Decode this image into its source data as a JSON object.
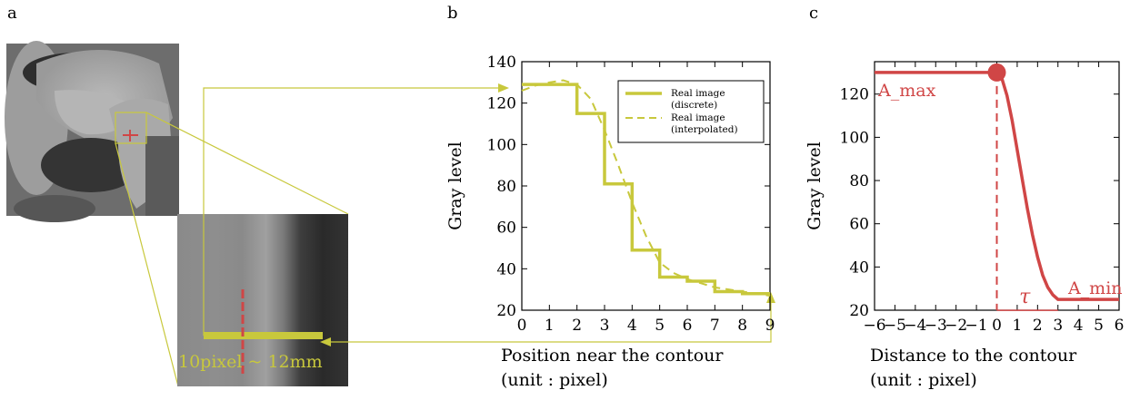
{
  "panel_labels": {
    "a": "a",
    "b": "b",
    "c": "c"
  },
  "panel_a": {
    "scale_bar_label": "10pixel ~ 12mm",
    "accent_color": "#c8c83c",
    "profile_color": "#d04646"
  },
  "chart_data": [
    {
      "type": "line",
      "panel": "b",
      "xlabel_line1": "Position near the contour",
      "xlabel_line2": "(unit : pixel)",
      "ylabel": "Gray level",
      "xlim": [
        0,
        9
      ],
      "ylim": [
        20,
        140
      ],
      "xticks": [
        0,
        1,
        2,
        3,
        4,
        5,
        6,
        7,
        8,
        9
      ],
      "yticks": [
        20,
        40,
        60,
        80,
        100,
        120,
        140
      ],
      "grid": false,
      "legend_position": "top-right",
      "series": [
        {
          "name": "Real image (discrete)",
          "legend_lines": [
            "Real image",
            "(discrete)"
          ],
          "style": "step",
          "color": "#c8c83c",
          "x": [
            0,
            1,
            2,
            3,
            4,
            5,
            6,
            7,
            8,
            9
          ],
          "y": [
            129,
            129,
            115,
            81,
            49,
            36,
            34,
            29,
            28,
            28
          ]
        },
        {
          "name": "Real image (interpolated)",
          "legend_lines": [
            "Real image",
            "(interpolated)"
          ],
          "style": "dashed",
          "color": "#c8c83c",
          "x": [
            0,
            0.5,
            1,
            1.5,
            2,
            2.5,
            3,
            3.5,
            4,
            4.5,
            5,
            5.5,
            6,
            6.5,
            7,
            7.5,
            8,
            8.5,
            9
          ],
          "y": [
            126,
            128.5,
            130,
            131,
            129,
            122,
            107,
            90,
            72,
            56,
            43,
            38,
            35,
            33,
            31,
            30,
            29,
            28,
            27
          ]
        }
      ]
    },
    {
      "type": "line",
      "panel": "c",
      "xlabel_line1": "Distance to the contour",
      "xlabel_line2": "(unit : pixel)",
      "ylabel": "Gray level",
      "xlim": [
        -6,
        6
      ],
      "ylim": [
        20,
        135
      ],
      "xticks": [
        -6,
        -5,
        -4,
        -3,
        -2,
        -1,
        0,
        1,
        2,
        3,
        4,
        5,
        6
      ],
      "xtick_labels": [
        "−6",
        "−5",
        "−4",
        "−3",
        "−2",
        "−1",
        "0",
        "1",
        "2",
        "3",
        "4",
        "5",
        "6"
      ],
      "yticks": [
        20,
        40,
        60,
        80,
        100,
        120
      ],
      "grid": false,
      "color": "#d04646",
      "series": [
        {
          "style": "solid",
          "x": [
            -6,
            0,
            0.25,
            0.5,
            0.75,
            1,
            1.25,
            1.5,
            1.75,
            2,
            2.25,
            2.5,
            2.75,
            3,
            6
          ],
          "y": [
            130,
            130,
            127.2,
            119.3,
            107.9,
            94.2,
            80.5,
            67.0,
            54.9,
            44.6,
            36.2,
            30.6,
            27.1,
            25,
            25
          ]
        }
      ],
      "annotations": {
        "a_max": "A_max",
        "a_min": "A_min",
        "tau": "τ",
        "a_max_value": 130,
        "a_min_value": 25,
        "tau_start": 0,
        "tau_end": 3
      }
    }
  ]
}
